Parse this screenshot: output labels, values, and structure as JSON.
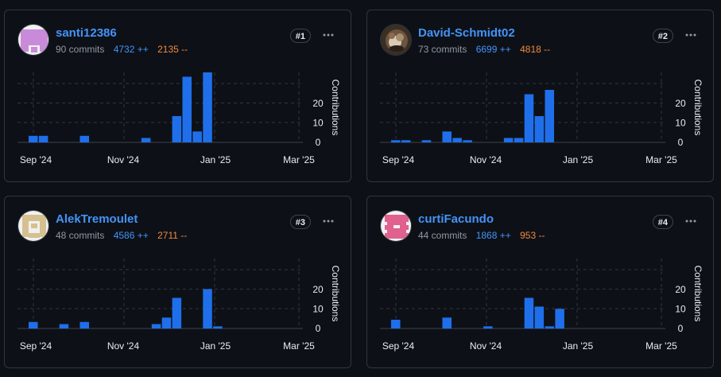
{
  "contributors": [
    {
      "username": "santi12386",
      "commits": "90 commits",
      "additions": "4732 ++",
      "deletions": "2135 --",
      "rank": "#1",
      "avatar": "pixel-avatar-purple",
      "chart_data": {
        "type": "bar",
        "ylabel": "Contributions",
        "yticks": [
          "0",
          "10",
          "20"
        ],
        "ylim": [
          0,
          32
        ],
        "xticks": [
          "Sep '24",
          "Nov '24",
          "Jan '25",
          "Mar '25"
        ],
        "values": [
          3,
          3,
          0,
          0,
          0,
          3,
          0,
          0,
          0,
          0,
          0,
          2,
          0,
          0,
          12,
          30,
          5,
          32,
          0,
          0,
          0,
          0,
          0,
          0,
          0,
          0,
          0,
          0
        ],
        "color": "#1f6feb"
      }
    },
    {
      "username": "David-Schmidt02",
      "commits": "73 commits",
      "additions": "6699 ++",
      "deletions": "4818 --",
      "rank": "#2",
      "avatar": "photo-avatar",
      "chart_data": {
        "type": "bar",
        "ylabel": "Contributions",
        "yticks": [
          "0",
          "10",
          "20"
        ],
        "ylim": [
          0,
          32
        ],
        "xticks": [
          "Sep '24",
          "Nov '24",
          "Jan '25",
          "Mar '25"
        ],
        "values": [
          1,
          1,
          0,
          1,
          0,
          5,
          2,
          1,
          0,
          0,
          0,
          2,
          2,
          22,
          12,
          24,
          0,
          0,
          0,
          0,
          0,
          0,
          0,
          0,
          0,
          0,
          0,
          0
        ],
        "color": "#1f6feb"
      }
    },
    {
      "username": "AlekTremoulet",
      "commits": "48 commits",
      "additions": "4586 ++",
      "deletions": "2711 --",
      "rank": "#3",
      "avatar": "pixel-avatar-tan",
      "chart_data": {
        "type": "bar",
        "ylabel": "Contributions",
        "yticks": [
          "0",
          "10",
          "20"
        ],
        "ylim": [
          0,
          32
        ],
        "xticks": [
          "Sep '24",
          "Nov '24",
          "Jan '25",
          "Mar '25"
        ],
        "values": [
          3,
          0,
          0,
          2,
          0,
          3,
          0,
          0,
          0,
          0,
          0,
          0,
          2,
          5,
          14,
          0,
          0,
          18,
          1,
          0,
          0,
          0,
          0,
          0,
          0,
          0,
          0,
          0
        ],
        "color": "#1f6feb"
      }
    },
    {
      "username": "curtiFacundo",
      "commits": "44 commits",
      "additions": "1868 ++",
      "deletions": "953 --",
      "rank": "#4",
      "avatar": "pixel-avatar-pink",
      "chart_data": {
        "type": "bar",
        "ylabel": "Contributions",
        "yticks": [
          "0",
          "10",
          "20"
        ],
        "ylim": [
          0,
          32
        ],
        "xticks": [
          "Sep '24",
          "Nov '24",
          "Jan '25",
          "Mar '25"
        ],
        "values": [
          4,
          0,
          0,
          0,
          0,
          5,
          0,
          0,
          0,
          1,
          0,
          0,
          0,
          14,
          10,
          1,
          9,
          0,
          0,
          0,
          0,
          0,
          0,
          0,
          0,
          0,
          0,
          0
        ],
        "color": "#1f6feb"
      }
    }
  ],
  "ui": {
    "more_icon": "kebab-horizontal-icon",
    "link_color": "#4493f8",
    "additions_color": "#4493f8",
    "deletions_color": "#f0883e"
  }
}
